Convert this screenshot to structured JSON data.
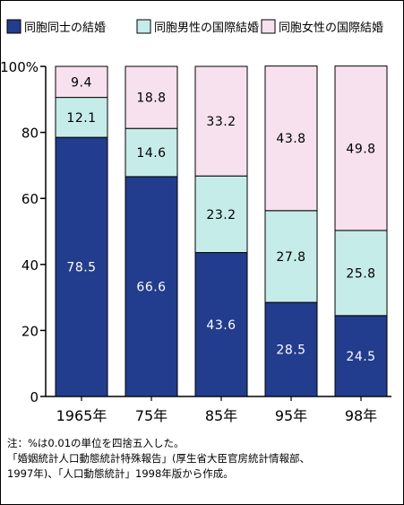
{
  "chart_data": {
    "type": "bar",
    "stacked": true,
    "categories": [
      "1965年",
      "75年",
      "85年",
      "95年",
      "98年"
    ],
    "series": [
      {
        "name": "同胞同士の結婚",
        "values": [
          78.5,
          66.6,
          43.6,
          28.5,
          24.5
        ],
        "color": "#223c8e",
        "label_color": "#ffffff"
      },
      {
        "name": "同胞男性の国際結婚",
        "values": [
          12.1,
          14.6,
          23.2,
          27.8,
          25.8
        ],
        "color": "#c5ece8",
        "label_color": "#000000"
      },
      {
        "name": "同胞女性の国際結婚",
        "values": [
          9.4,
          18.8,
          33.2,
          43.8,
          49.8
        ],
        "color": "#f7e1ee",
        "label_color": "#000000"
      }
    ],
    "ylim": [
      0,
      100
    ],
    "yticks": [
      "0",
      "20",
      "40",
      "60",
      "80",
      "100%"
    ],
    "legend_position": "top"
  },
  "note": {
    "lines": [
      "注：%は0.01の単位を四捨五入した。",
      "「婚姻統計人口動態統計特殊報告」(厚生省大臣官房統計情報部、",
      "1997年)、「人口動態統計」1998年版から作成。"
    ]
  }
}
